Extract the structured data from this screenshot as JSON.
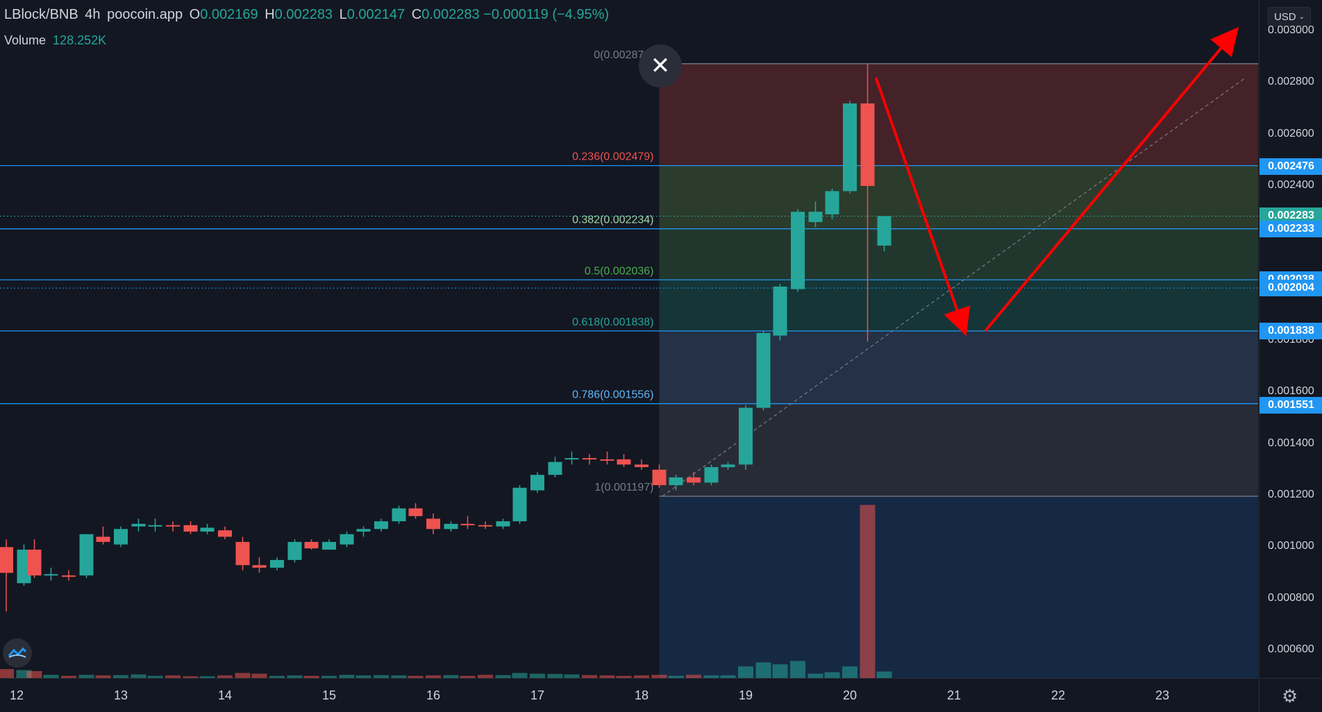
{
  "legend": {
    "symbol": "LBlock/BNB",
    "interval": "4h",
    "source": "poocoin.app",
    "o_label": "O",
    "o": "0.002169",
    "h_label": "H",
    "h": "0.002283",
    "l_label": "L",
    "l": "0.002147",
    "c_label": "C",
    "c": "0.002283",
    "change": "−0.000119 (−4.95%)",
    "volume_label": "Volume",
    "volume": "128.252K"
  },
  "currency_button": "USD",
  "icons": {
    "close": "close-icon",
    "settings": "gear-icon",
    "logo": "tradingview-logo-icon"
  },
  "colors": {
    "up": "#26a69a",
    "down": "#ef5350",
    "fib_line": "#2196f3",
    "arrow": "#ff0000",
    "background": "#131722"
  },
  "chart_data": {
    "type": "candlestick",
    "title": "",
    "xlabel": "",
    "ylabel": "",
    "x_ticks": [
      "12",
      "13",
      "14",
      "15",
      "16",
      "17",
      "18",
      "19",
      "20",
      "21",
      "22",
      "23"
    ],
    "y_ticks": [
      "0.003000",
      "0.002800",
      "0.002600",
      "0.002400",
      "0.001800",
      "0.001600",
      "0.001400",
      "0.001200",
      "0.001000",
      "0.000800",
      "0.000600"
    ],
    "ylim": [
      0.00053,
      0.00307
    ],
    "price_tags": [
      {
        "label": "0.002476",
        "value": 0.002476
      },
      {
        "label": "0.002283",
        "value": 0.002283
      },
      {
        "label": "0.002233",
        "value": 0.002233
      },
      {
        "label": "0.002038",
        "value": 0.002038
      },
      {
        "label": "0.002004",
        "value": 0.002004
      },
      {
        "label": "0.001838",
        "value": 0.001838
      },
      {
        "label": "0.001551",
        "value": 0.001551
      }
    ],
    "fib_levels": [
      {
        "label": "0(0.002874)",
        "value": 0.002874,
        "color": "#787b86",
        "fill": "#4a2429"
      },
      {
        "label": "0.236(0.002479)",
        "value": 0.002479,
        "color": "#ef5350",
        "fill": "#2f3f2d"
      },
      {
        "label": "0.382(0.002234)",
        "value": 0.002234,
        "color": "#a5d6a7",
        "fill": "#233b2f"
      },
      {
        "label": "0.5(0.002036)",
        "value": 0.002036,
        "color": "#4caf50",
        "fill": "#16393a"
      },
      {
        "label": "0.618(0.001838)",
        "value": 0.001838,
        "color": "#26a69a",
        "fill": "#27344a"
      },
      {
        "label": "0.786(0.001556)",
        "value": 0.001556,
        "color": "#64b5f6",
        "fill": "#2a2d38"
      },
      {
        "label": "1(0.001197)",
        "value": 0.001197,
        "color": "#787b86",
        "fill": "#172b48"
      }
    ],
    "candles": [
      {
        "x": 11.9,
        "o": 0.001,
        "h": 0.00103,
        "l": 0.00075,
        "c": 0.0009,
        "v": 6.2e-05
      },
      {
        "x": 12.07,
        "o": 0.00086,
        "h": 0.00101,
        "l": 0.00085,
        "c": 0.00099,
        "v": 5.5e-05
      },
      {
        "x": 12.17,
        "o": 0.00099,
        "h": 0.00103,
        "l": 0.00088,
        "c": 0.00089,
        "v": 4.8e-05
      },
      {
        "x": 12.33,
        "o": 0.00089,
        "h": 0.00092,
        "l": 0.00087,
        "c": 0.000895,
        "v": 2.2e-05
      },
      {
        "x": 12.5,
        "o": 0.00089,
        "h": 0.00091,
        "l": 0.00087,
        "c": 0.000885,
        "v": 1.5e-05
      },
      {
        "x": 12.67,
        "o": 0.00089,
        "h": 0.00105,
        "l": 0.00088,
        "c": 0.00105,
        "v": 2.2e-05
      },
      {
        "x": 12.83,
        "o": 0.00104,
        "h": 0.00108,
        "l": 0.00101,
        "c": 0.00102,
        "v": 1.8e-05
      },
      {
        "x": 13.0,
        "o": 0.00101,
        "h": 0.00108,
        "l": 0.001,
        "c": 0.00107,
        "v": 2e-05
      },
      {
        "x": 13.17,
        "o": 0.00108,
        "h": 0.00111,
        "l": 0.00106,
        "c": 0.00109,
        "v": 2.5e-05
      },
      {
        "x": 13.33,
        "o": 0.00108,
        "h": 0.00111,
        "l": 0.00106,
        "c": 0.001085,
        "v": 1.5e-05
      },
      {
        "x": 13.5,
        "o": 0.001085,
        "h": 0.0011,
        "l": 0.00106,
        "c": 0.00108,
        "v": 1.8e-05
      },
      {
        "x": 13.67,
        "o": 0.001085,
        "h": 0.0011,
        "l": 0.00105,
        "c": 0.00106,
        "v": 1.2e-05
      },
      {
        "x": 13.83,
        "o": 0.00106,
        "h": 0.00109,
        "l": 0.00105,
        "c": 0.001075,
        "v": 1.2e-05
      },
      {
        "x": 14.0,
        "o": 0.001065,
        "h": 0.00108,
        "l": 0.00103,
        "c": 0.00104,
        "v": 1.8e-05
      },
      {
        "x": 14.17,
        "o": 0.00102,
        "h": 0.00104,
        "l": 0.00091,
        "c": 0.00093,
        "v": 3.5e-05
      },
      {
        "x": 14.33,
        "o": 0.00093,
        "h": 0.00096,
        "l": 0.0009,
        "c": 0.00092,
        "v": 3e-05
      },
      {
        "x": 14.5,
        "o": 0.00092,
        "h": 0.00096,
        "l": 0.00091,
        "c": 0.00095,
        "v": 1.5e-05
      },
      {
        "x": 14.67,
        "o": 0.00095,
        "h": 0.00103,
        "l": 0.00094,
        "c": 0.00102,
        "v": 1.8e-05
      },
      {
        "x": 14.83,
        "o": 0.00102,
        "h": 0.00103,
        "l": 0.00099,
        "c": 0.000995,
        "v": 1.5e-05
      },
      {
        "x": 15.0,
        "o": 0.00099,
        "h": 0.00103,
        "l": 0.00099,
        "c": 0.00102,
        "v": 1.5e-05
      },
      {
        "x": 15.17,
        "o": 0.00101,
        "h": 0.00106,
        "l": 0.001,
        "c": 0.00105,
        "v": 2.2e-05
      },
      {
        "x": 15.33,
        "o": 0.00106,
        "h": 0.00108,
        "l": 0.00104,
        "c": 0.00107,
        "v": 1.8e-05
      },
      {
        "x": 15.5,
        "o": 0.00107,
        "h": 0.00111,
        "l": 0.00106,
        "c": 0.0011,
        "v": 2e-05
      },
      {
        "x": 15.67,
        "o": 0.0011,
        "h": 0.00116,
        "l": 0.00109,
        "c": 0.00115,
        "v": 1.8e-05
      },
      {
        "x": 15.83,
        "o": 0.00115,
        "h": 0.00117,
        "l": 0.00111,
        "c": 0.00112,
        "v": 1.5e-05
      },
      {
        "x": 16.0,
        "o": 0.00111,
        "h": 0.00113,
        "l": 0.00105,
        "c": 0.00107,
        "v": 1.8e-05
      },
      {
        "x": 16.17,
        "o": 0.00107,
        "h": 0.0011,
        "l": 0.00106,
        "c": 0.00109,
        "v": 2e-05
      },
      {
        "x": 16.33,
        "o": 0.00109,
        "h": 0.00112,
        "l": 0.00107,
        "c": 0.001085,
        "v": 1.5e-05
      },
      {
        "x": 16.5,
        "o": 0.001085,
        "h": 0.0011,
        "l": 0.00107,
        "c": 0.00108,
        "v": 2.2e-05
      },
      {
        "x": 16.67,
        "o": 0.00108,
        "h": 0.00111,
        "l": 0.00107,
        "c": 0.0011,
        "v": 2e-05
      },
      {
        "x": 16.83,
        "o": 0.0011,
        "h": 0.00124,
        "l": 0.00109,
        "c": 0.00123,
        "v": 3.5e-05
      },
      {
        "x": 17.0,
        "o": 0.00122,
        "h": 0.00129,
        "l": 0.00121,
        "c": 0.00128,
        "v": 3e-05
      },
      {
        "x": 17.17,
        "o": 0.00128,
        "h": 0.00135,
        "l": 0.00127,
        "c": 0.00133,
        "v": 2.8e-05
      },
      {
        "x": 17.33,
        "o": 0.00134,
        "h": 0.00137,
        "l": 0.00132,
        "c": 0.001345,
        "v": 2.5e-05
      },
      {
        "x": 17.5,
        "o": 0.001345,
        "h": 0.00136,
        "l": 0.00132,
        "c": 0.00134,
        "v": 2e-05
      },
      {
        "x": 17.67,
        "o": 0.00134,
        "h": 0.00137,
        "l": 0.00132,
        "c": 0.001335,
        "v": 1.8e-05
      },
      {
        "x": 17.83,
        "o": 0.00134,
        "h": 0.00136,
        "l": 0.00131,
        "c": 0.00132,
        "v": 1.5e-05
      },
      {
        "x": 18.0,
        "o": 0.00132,
        "h": 0.00134,
        "l": 0.0013,
        "c": 0.00131,
        "v": 1.8e-05
      },
      {
        "x": 18.17,
        "o": 0.0013,
        "h": 0.00132,
        "l": 0.00123,
        "c": 0.00124,
        "v": 2.2e-05
      },
      {
        "x": 18.33,
        "o": 0.00124,
        "h": 0.00128,
        "l": 0.00122,
        "c": 0.00127,
        "v": 1.5e-05
      },
      {
        "x": 18.5,
        "o": 0.00127,
        "h": 0.00129,
        "l": 0.00124,
        "c": 0.00125,
        "v": 2.2e-05
      },
      {
        "x": 18.67,
        "o": 0.00125,
        "h": 0.00132,
        "l": 0.00124,
        "c": 0.00131,
        "v": 1.8e-05
      },
      {
        "x": 18.83,
        "o": 0.00131,
        "h": 0.00133,
        "l": 0.0013,
        "c": 0.00132,
        "v": 1.8e-05
      },
      {
        "x": 19.0,
        "o": 0.00132,
        "h": 0.00155,
        "l": 0.0013,
        "c": 0.00154,
        "v": 8e-05
      },
      {
        "x": 19.17,
        "o": 0.00154,
        "h": 0.00184,
        "l": 0.00153,
        "c": 0.00183,
        "v": 0.000108
      },
      {
        "x": 19.33,
        "o": 0.00182,
        "h": 0.00202,
        "l": 0.0018,
        "c": 0.00201,
        "v": 9.5e-05
      },
      {
        "x": 19.5,
        "o": 0.002,
        "h": 0.00231,
        "l": 0.00199,
        "c": 0.0023,
        "v": 0.000118
      },
      {
        "x": 19.67,
        "o": 0.00226,
        "h": 0.00234,
        "l": 0.00224,
        "c": 0.0023,
        "v": 3e-05
      },
      {
        "x": 19.83,
        "o": 0.00229,
        "h": 0.00239,
        "l": 0.00227,
        "c": 0.00238,
        "v": 4e-05
      },
      {
        "x": 20.0,
        "o": 0.00238,
        "h": 0.00273,
        "l": 0.00237,
        "c": 0.00272,
        "v": 8e-05
      },
      {
        "x": 20.17,
        "o": 0.00272,
        "h": 0.002874,
        "l": 0.001797,
        "c": 0.0024,
        "v": 0.001197
      },
      {
        "x": 20.33,
        "o": 0.002169,
        "h": 0.002283,
        "l": 0.002147,
        "c": 0.002283,
        "v": 4.5e-05
      }
    ],
    "annotations": [
      {
        "type": "arrow",
        "from": [
          20.25,
          0.00282
        ],
        "to": [
          21.1,
          0.001838
        ]
      },
      {
        "type": "arrow",
        "from": [
          21.3,
          0.001838
        ],
        "to": [
          23.7,
          0.003
        ]
      },
      {
        "type": "dashed_trend",
        "from": [
          18.2,
          0.001197
        ],
        "to": [
          23.8,
          0.00282
        ]
      },
      {
        "type": "dotted_level",
        "value": 0.002283
      },
      {
        "type": "dotted_level",
        "value": 0.002004
      },
      {
        "type": "vertical_marker",
        "x": 20.17
      }
    ]
  }
}
